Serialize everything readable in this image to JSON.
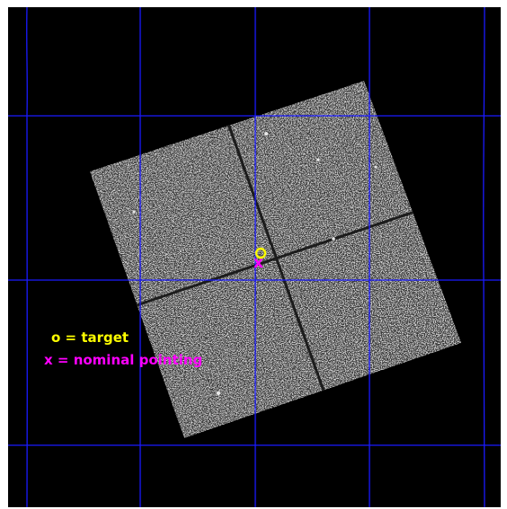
{
  "legend": {
    "target": "o = target",
    "nominal": "x = nominal pointing"
  },
  "markers": {
    "target_symbol": "o",
    "nominal_symbol": "x"
  },
  "colors": {
    "background": "#000000",
    "grid": "#1a1aff",
    "detector": "#9a9a9a",
    "target": "#ffff00",
    "nominal": "#ff00ff"
  }
}
